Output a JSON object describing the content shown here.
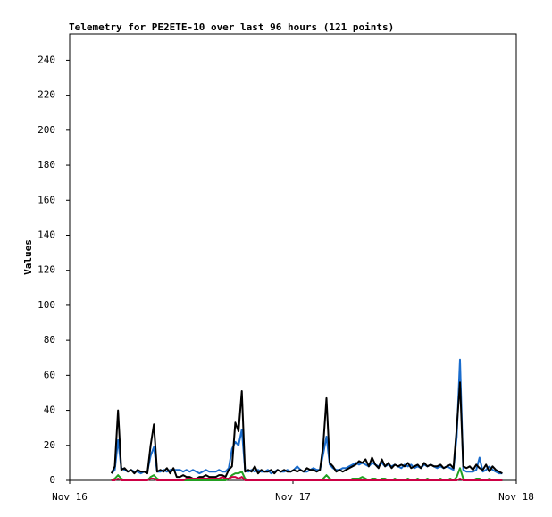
{
  "chart_data": {
    "type": "line",
    "title": "Telemetry for PE2ETE-10 over last 96 hours (121 points)",
    "y_label": "Values",
    "x": [
      270,
      291,
      312,
      333,
      354,
      375,
      396,
      417,
      438,
      459,
      480,
      501,
      522,
      543,
      564,
      585,
      606,
      627,
      648,
      669,
      690,
      711,
      732,
      753,
      774,
      795,
      816,
      837,
      858,
      879,
      900,
      921,
      942,
      963,
      984,
      1005,
      1026,
      1047,
      1068,
      1089,
      1110,
      1131,
      1152,
      1173,
      1194,
      1215,
      1236,
      1257,
      1278,
      1299,
      1320,
      1341,
      1362,
      1383,
      1404,
      1425,
      1446,
      1467,
      1488,
      1509,
      1530,
      1551,
      1572,
      1593,
      1614,
      1635,
      1656,
      1677,
      1698,
      1719,
      1740,
      1761,
      1782,
      1803,
      1824,
      1845,
      1866,
      1887,
      1908,
      1929,
      1950,
      1971,
      1992,
      2013,
      2034,
      2055,
      2076,
      2097,
      2118,
      2139,
      2160,
      2181,
      2202,
      2223,
      2244,
      2265,
      2286,
      2307,
      2328,
      2349,
      2370,
      2391,
      2412,
      2433,
      2454,
      2475,
      2496,
      2517,
      2538,
      2559,
      2580,
      2601,
      2622,
      2643,
      2664,
      2685,
      2706,
      2727,
      2748,
      2769,
      2790
    ],
    "series": [
      {
        "color": "#1a6ccc",
        "values": [
          4,
          6,
          23,
          7,
          6,
          5,
          6,
          5,
          5,
          4,
          5,
          5,
          14,
          19,
          5,
          5,
          6,
          5,
          6,
          6,
          6,
          6,
          5,
          6,
          5,
          6,
          5,
          4,
          5,
          6,
          5,
          5,
          5,
          6,
          5,
          5,
          7,
          18,
          22,
          20,
          29,
          6,
          5,
          6,
          5,
          6,
          5,
          5,
          6,
          4,
          5,
          6,
          5,
          5,
          6,
          5,
          6,
          8,
          6,
          5,
          5,
          6,
          7,
          6,
          6,
          15,
          25,
          9,
          7,
          6,
          6,
          7,
          7,
          8,
          9,
          10,
          9,
          10,
          9,
          8,
          10,
          9,
          8,
          10,
          8,
          9,
          8,
          9,
          8,
          7,
          9,
          8,
          9,
          7,
          8,
          7,
          9,
          8,
          9,
          8,
          7,
          8,
          7,
          8,
          7,
          6,
          25,
          69,
          6,
          5,
          5,
          5,
          6,
          13,
          5,
          6,
          8,
          6,
          5,
          4,
          4
        ]
      },
      {
        "color": "#000000",
        "values": [
          4,
          8,
          40,
          6,
          7,
          5,
          6,
          4,
          6,
          5,
          5,
          4,
          20,
          32,
          5,
          6,
          5,
          7,
          4,
          7,
          2,
          2,
          3,
          2,
          2,
          1,
          1,
          2,
          2,
          3,
          2,
          2,
          2,
          3,
          3,
          2,
          6,
          8,
          33,
          28,
          51,
          5,
          6,
          5,
          8,
          4,
          6,
          5,
          5,
          6,
          4,
          6,
          5,
          6,
          5,
          5,
          6,
          5,
          6,
          5,
          7,
          6,
          6,
          5,
          6,
          20,
          47,
          10,
          8,
          5,
          6,
          5,
          6,
          7,
          8,
          9,
          11,
          10,
          12,
          8,
          13,
          9,
          7,
          12,
          8,
          10,
          7,
          9,
          8,
          9,
          8,
          10,
          7,
          8,
          9,
          7,
          10,
          8,
          9,
          8,
          8,
          9,
          7,
          8,
          9,
          7,
          30,
          56,
          8,
          7,
          8,
          6,
          9,
          7,
          6,
          9,
          5,
          8,
          6,
          5,
          4
        ]
      },
      {
        "color": "#22a022",
        "values": [
          0,
          1,
          3,
          1,
          0,
          0,
          0,
          0,
          0,
          0,
          0,
          0,
          2,
          3,
          1,
          0,
          0,
          0,
          0,
          0,
          0,
          0,
          0,
          0,
          0,
          0,
          0,
          0,
          0,
          0,
          0,
          0,
          0,
          0,
          0,
          0,
          1,
          3,
          4,
          4,
          5,
          1,
          0,
          0,
          0,
          0,
          0,
          0,
          0,
          0,
          0,
          0,
          0,
          0,
          0,
          0,
          0,
          0,
          0,
          0,
          0,
          0,
          0,
          0,
          0,
          1,
          3,
          1,
          0,
          0,
          0,
          0,
          0,
          0,
          1,
          1,
          1,
          2,
          1,
          0,
          1,
          1,
          0,
          1,
          1,
          0,
          0,
          1,
          0,
          0,
          0,
          1,
          0,
          0,
          1,
          0,
          0,
          1,
          0,
          0,
          0,
          1,
          0,
          0,
          1,
          0,
          2,
          7,
          1,
          0,
          0,
          0,
          1,
          1,
          0,
          0,
          1,
          0,
          0,
          0,
          0
        ]
      },
      {
        "color": "#cc0044",
        "values": [
          0,
          0,
          1,
          0,
          0,
          0,
          0,
          0,
          0,
          0,
          0,
          0,
          1,
          1,
          0,
          0,
          0,
          0,
          0,
          0,
          0,
          0,
          0,
          1,
          1,
          1,
          1,
          1,
          1,
          1,
          1,
          1,
          1,
          1,
          2,
          1,
          1,
          2,
          2,
          1,
          2,
          0,
          0,
          0,
          0,
          0,
          0,
          0,
          0,
          0,
          0,
          0,
          0,
          0,
          0,
          0,
          0,
          0,
          0,
          0,
          0,
          0,
          0,
          0,
          0,
          0,
          0,
          0,
          0,
          0,
          0,
          0,
          0,
          0,
          0,
          0,
          0,
          0,
          0,
          0,
          0,
          0,
          0,
          0,
          0,
          0,
          0,
          0,
          0,
          0,
          0,
          0,
          0,
          0,
          0,
          0,
          0,
          0,
          0,
          0,
          0,
          0,
          0,
          0,
          0,
          0,
          0,
          1,
          0,
          0,
          0,
          0,
          0,
          0,
          0,
          0,
          0,
          0,
          0,
          0,
          0
        ]
      }
    ],
    "xlim": [
      0,
      2880
    ],
    "xticks": [
      {
        "value": 0,
        "label": "Nov 16"
      },
      {
        "value": 1440,
        "label": "Nov 17"
      },
      {
        "value": 2880,
        "label": "Nov 18"
      }
    ],
    "ylim": [
      0,
      255
    ],
    "yticks": [
      0,
      20,
      40,
      60,
      80,
      100,
      120,
      140,
      160,
      180,
      200,
      220,
      240
    ],
    "grid": false
  }
}
